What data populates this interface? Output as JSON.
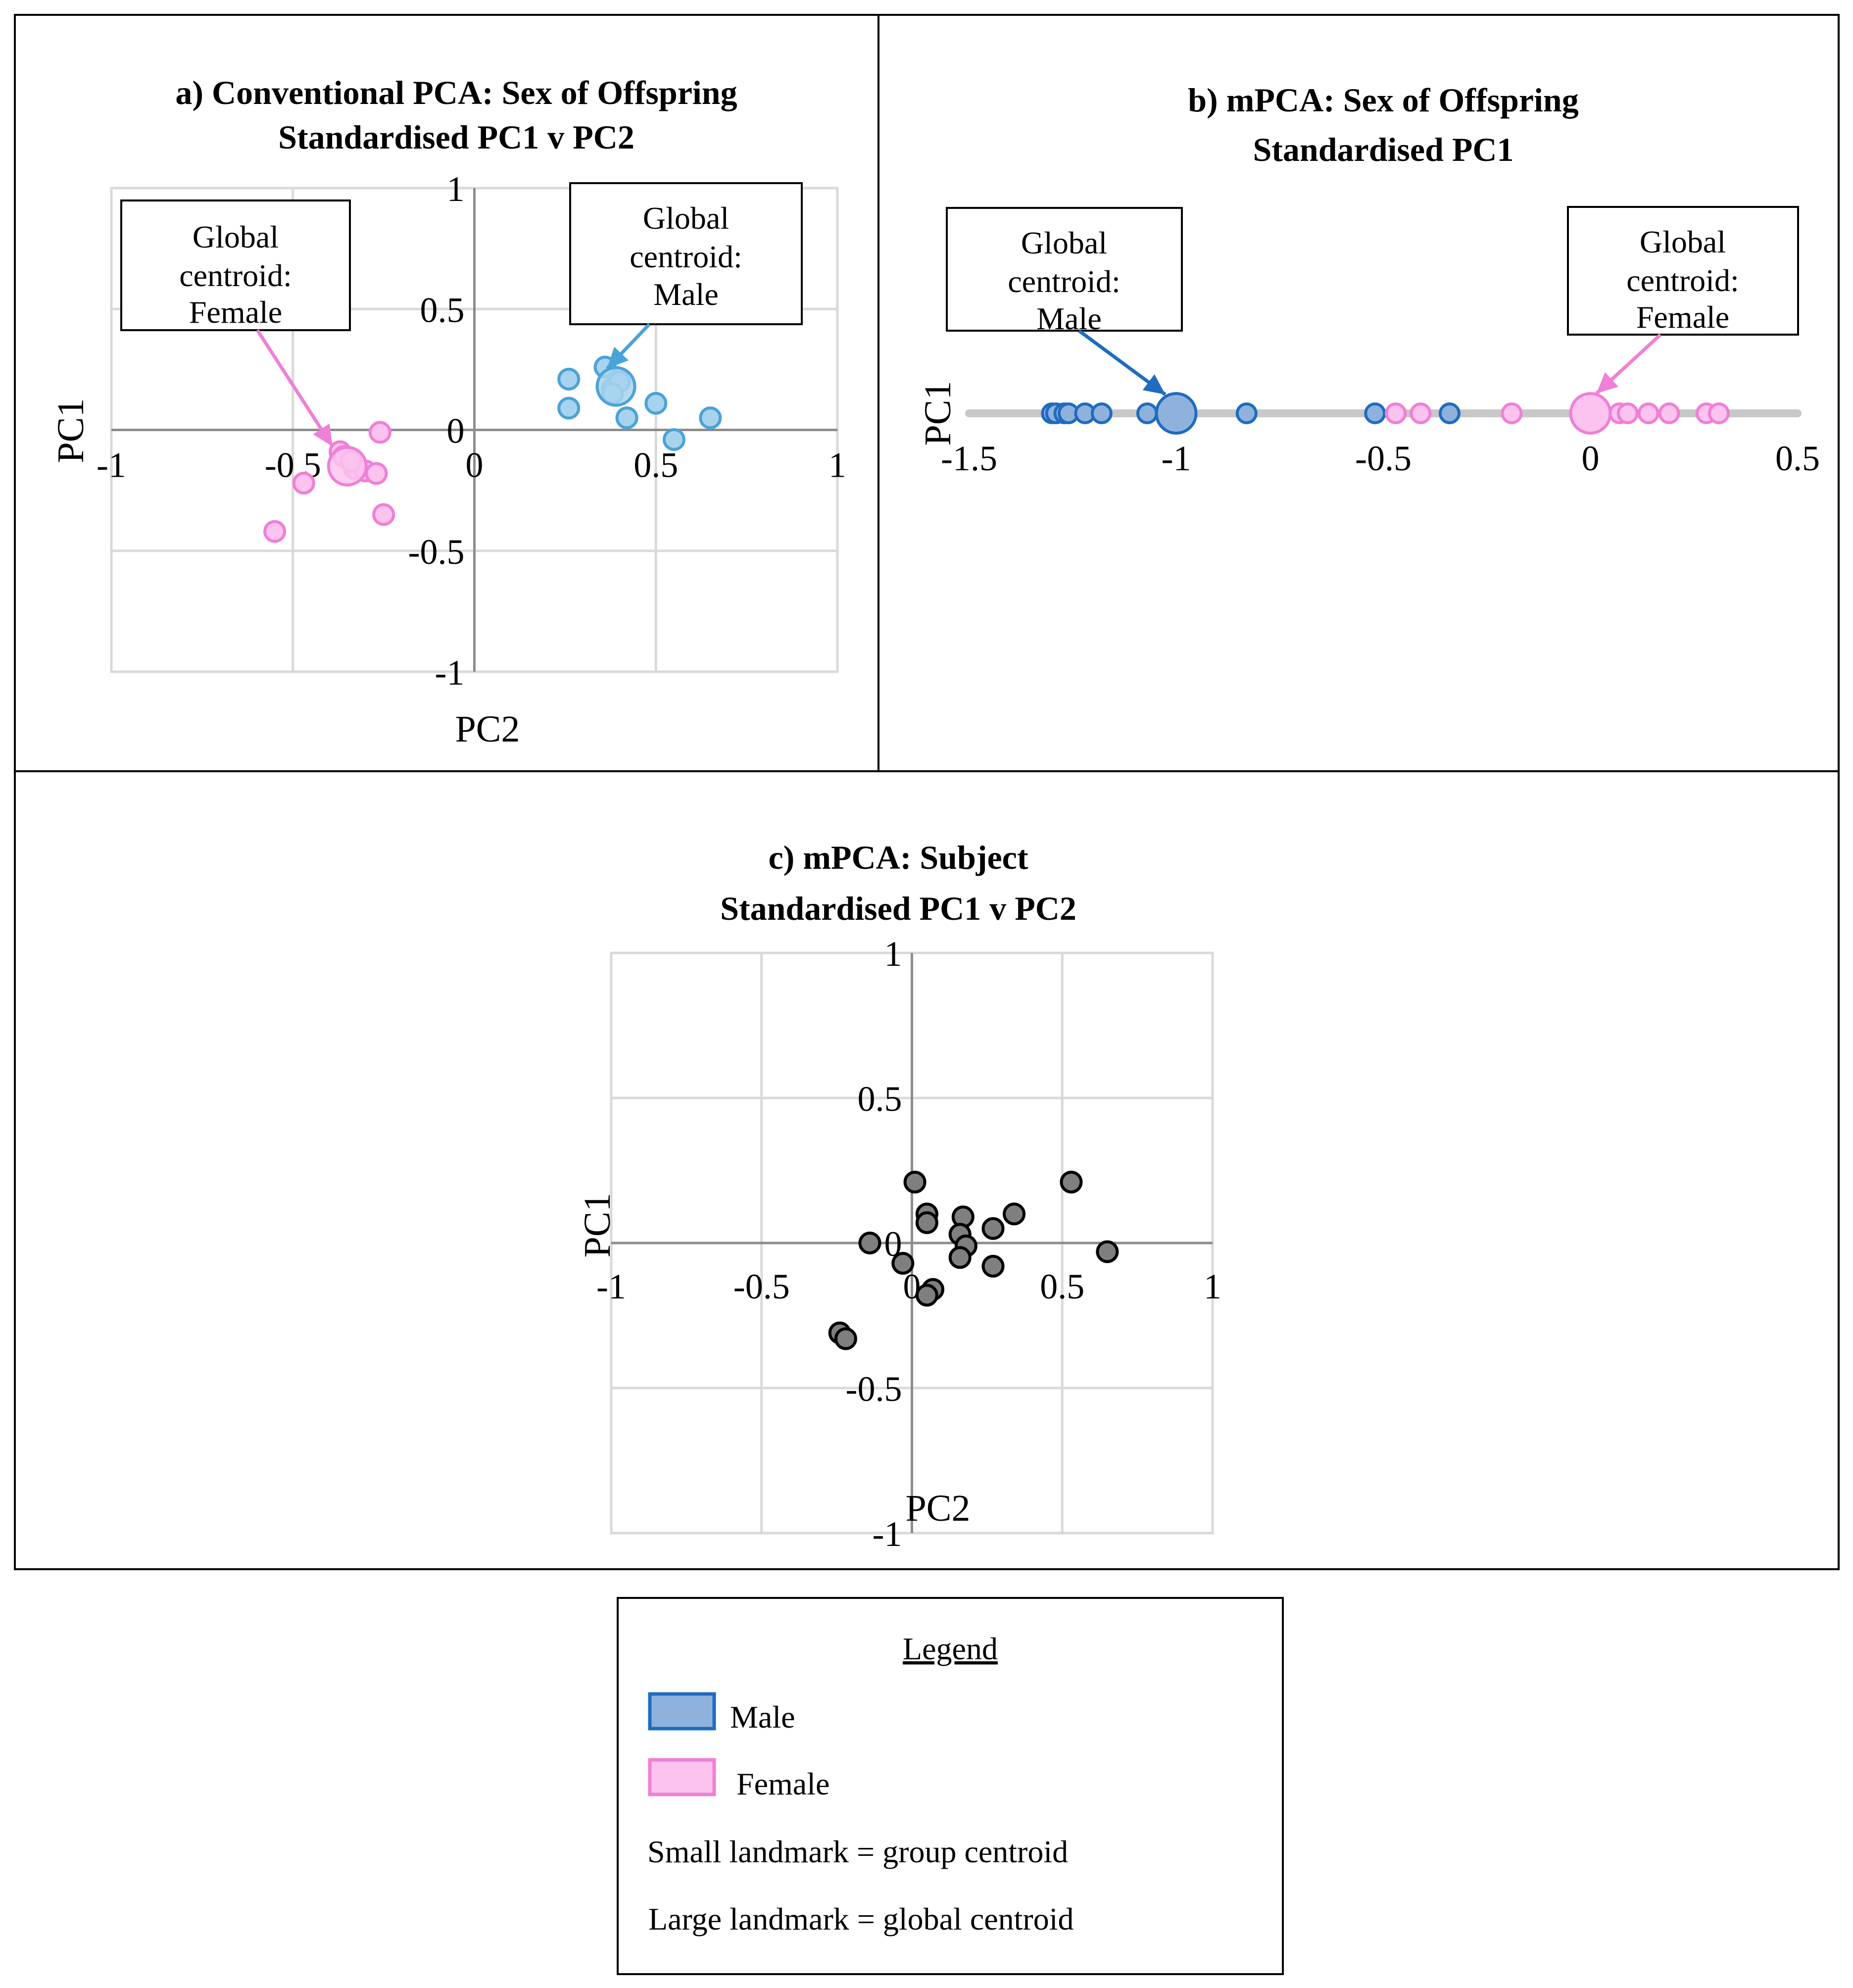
{
  "legend": {
    "title": "Legend",
    "male": "Male",
    "female": "Female",
    "note1": "Small landmark = group centroid",
    "note2": "Large landmark = global centroid"
  },
  "colors": {
    "male_a": "#4aa3d6",
    "male_a_fill": "#a8d3ee",
    "male_b": "#1f6cc0",
    "male_b_fill": "#8fb2dd",
    "female": "#f07fd6",
    "female_fill": "#fbc3ee",
    "subject": "#000000",
    "subject_fill": "#7f7f7f"
  },
  "chart_data": [
    {
      "id": "a",
      "type": "scatter",
      "title": "a) Conventional PCA: Sex of Offspring",
      "subtitle": "Standardised PC1 v PC2",
      "xlabel": "PC2",
      "ylabel": "PC1",
      "xlim": [
        -1,
        1
      ],
      "ylim": [
        -1,
        1
      ],
      "xticks": [
        "-1",
        "-0.5",
        "0",
        "0.5",
        "1"
      ],
      "yticks": [
        "1",
        "0.5",
        "0",
        "-0.5",
        "-1"
      ],
      "callout_female": [
        "Global",
        "centroid:",
        "Female"
      ],
      "callout_male": [
        "Global",
        "centroid:",
        "Male"
      ],
      "series": [
        {
          "name": "Male",
          "points": [
            [
              0.26,
              0.21
            ],
            [
              0.36,
              0.26
            ],
            [
              0.38,
              0.17
            ],
            [
              0.4,
              0.2
            ],
            [
              0.38,
              0.15
            ],
            [
              0.26,
              0.09
            ],
            [
              0.42,
              0.05
            ],
            [
              0.5,
              0.11
            ],
            [
              0.55,
              -0.04
            ],
            [
              0.65,
              0.05
            ]
          ],
          "centroid": [
            0.39,
            0.18
          ]
        },
        {
          "name": "Female",
          "points": [
            [
              -0.47,
              -0.22
            ],
            [
              -0.37,
              -0.09
            ],
            [
              -0.36,
              -0.11
            ],
            [
              -0.33,
              -0.16
            ],
            [
              -0.3,
              -0.17
            ],
            [
              -0.34,
              -0.13
            ],
            [
              -0.27,
              -0.18
            ],
            [
              -0.26,
              -0.01
            ],
            [
              -0.25,
              -0.35
            ],
            [
              -0.55,
              -0.42
            ]
          ],
          "centroid": [
            -0.35,
            -0.15
          ]
        }
      ]
    },
    {
      "id": "b",
      "type": "scatter",
      "title": "b) mPCA: Sex of Offspring",
      "subtitle": "Standardised PC1",
      "ylabel": "PC1",
      "xlim": [
        -1.5,
        0.5
      ],
      "xticks": [
        "-1.5",
        "-1",
        "-0.5",
        "0",
        "0.5"
      ],
      "callout_male": [
        "Global",
        "centroid:",
        "Male"
      ],
      "callout_female": [
        "Global",
        "centroid:",
        "Female"
      ],
      "series": [
        {
          "name": "Male",
          "x": [
            -1.3,
            -1.29,
            -1.27,
            -1.26,
            -1.22,
            -1.18,
            -1.07,
            -0.83,
            -0.52,
            -0.34
          ],
          "centroid": -1.0
        },
        {
          "name": "Female",
          "x": [
            -0.47,
            -0.41,
            -0.19,
            0.07,
            0.09,
            0.14,
            0.19,
            0.28,
            0.31
          ],
          "centroid": 0.0
        }
      ]
    },
    {
      "id": "c",
      "type": "scatter",
      "title": "c) mPCA: Subject",
      "subtitle": "Standardised PC1 v PC2",
      "xlabel": "PC2",
      "ylabel": "PC1",
      "xlim": [
        -1,
        1
      ],
      "ylim": [
        -1,
        1
      ],
      "xticks": [
        "-1",
        "-0.5",
        "0",
        "0.5",
        "1"
      ],
      "yticks": [
        "1",
        "0.5",
        "0",
        "-0.5",
        "-1"
      ],
      "series": [
        {
          "name": "Subject",
          "points": [
            [
              0.01,
              0.21
            ],
            [
              0.05,
              0.1
            ],
            [
              0.05,
              0.07
            ],
            [
              0.17,
              0.09
            ],
            [
              0.34,
              0.1
            ],
            [
              0.53,
              0.21
            ],
            [
              0.16,
              0.03
            ],
            [
              0.27,
              0.05
            ],
            [
              0.18,
              -0.01
            ],
            [
              0.16,
              -0.05
            ],
            [
              -0.14,
              0.0
            ],
            [
              -0.03,
              -0.07
            ],
            [
              0.27,
              -0.08
            ],
            [
              0.07,
              -0.16
            ],
            [
              0.05,
              -0.18
            ],
            [
              0.65,
              -0.03
            ],
            [
              -0.24,
              -0.31
            ],
            [
              -0.22,
              -0.33
            ]
          ]
        }
      ]
    }
  ]
}
